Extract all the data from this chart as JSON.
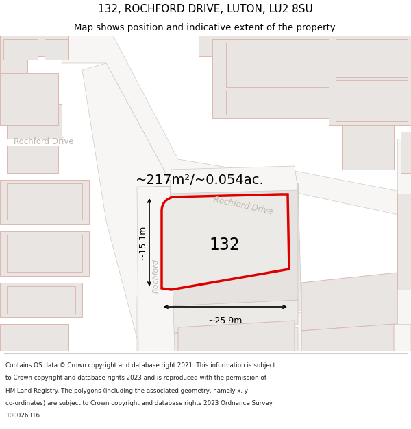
{
  "title": "132, ROCHFORD DRIVE, LUTON, LU2 8SU",
  "subtitle": "Map shows position and indicative extent of the property.",
  "area_label": "~217m²/~0.054ac.",
  "width_label": "~25.9m",
  "height_label": "~15.1m",
  "property_number": "132",
  "map_bg": "#f5f3f1",
  "road_fill": "#ffffff",
  "building_fill": "#e8e4e0",
  "building_outline_pink": "#e8b0b0",
  "plot_fill": "#ebe8e5",
  "highlight_red": "#dd0000",
  "road_label_color": "#c0b8b0",
  "dim_color": "#000000",
  "title_fontsize": 11,
  "subtitle_fontsize": 9.5,
  "area_fontsize": 14,
  "footer_lines": [
    "Contains OS data © Crown copyright and database right 2021. This information is subject",
    "to Crown copyright and database rights 2023 and is reproduced with the permission of",
    "HM Land Registry. The polygons (including the associated geometry, namely x, y",
    "co-ordinates) are subject to Crown copyright and database rights 2023 Ordnance Survey",
    "100026316."
  ]
}
